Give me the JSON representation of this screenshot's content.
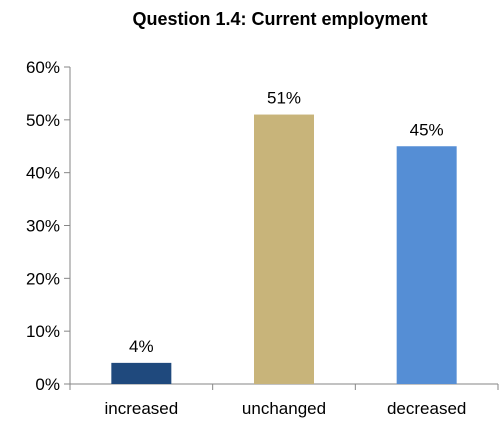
{
  "chart_data": {
    "type": "bar",
    "title": "Question 1.4: Current employment",
    "categories": [
      "increased",
      "unchanged",
      "decreased"
    ],
    "values": [
      4,
      51,
      45
    ],
    "data_labels": [
      "4%",
      "51%",
      "45%"
    ],
    "colors": [
      "#1F497D",
      "#C8B47A",
      "#558ED5"
    ],
    "ylim": [
      0,
      60
    ],
    "yticks": [
      0,
      10,
      20,
      30,
      40,
      50,
      60
    ],
    "ytick_labels": [
      "0%",
      "10%",
      "20%",
      "30%",
      "40%",
      "50%",
      "60%"
    ],
    "grid": false,
    "legend": false
  }
}
